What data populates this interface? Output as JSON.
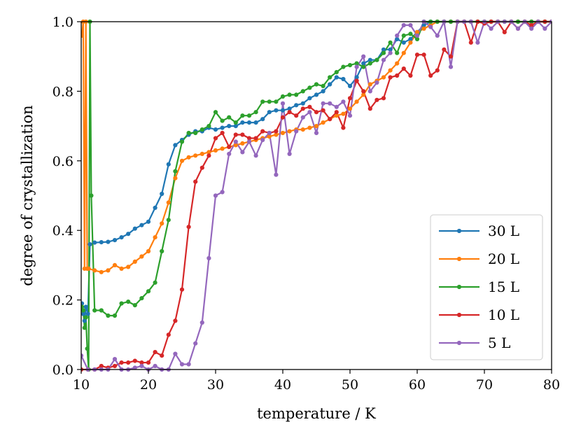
{
  "chart_data": {
    "type": "line",
    "title": "",
    "xlabel": "temperature / K",
    "ylabel": "degree of crystallization",
    "xlim": [
      10,
      80
    ],
    "ylim": [
      0.0,
      1.0
    ],
    "xticks": [
      "10",
      "20",
      "30",
      "40",
      "50",
      "60",
      "70",
      "80"
    ],
    "yticks": [
      "0.0",
      "0.2",
      "0.4",
      "0.6",
      "0.8",
      "1.0"
    ],
    "grid": false,
    "legend_position": "bottom-right",
    "series": [
      {
        "name": "30 L",
        "color": "#1f77b4",
        "x": [
          10.1,
          10.3,
          10.5,
          10.7,
          11.0,
          11.3,
          12,
          13,
          14,
          15,
          16,
          17,
          18,
          19,
          20,
          21,
          22,
          23,
          24,
          25,
          26,
          27,
          28,
          29,
          30,
          31,
          32,
          33,
          34,
          35,
          36,
          37,
          38,
          39,
          40,
          41,
          42,
          43,
          44,
          45,
          46,
          47,
          48,
          49,
          50,
          51,
          52,
          53,
          54,
          55,
          56,
          57,
          58,
          59,
          60,
          61,
          62,
          63,
          64,
          65,
          66,
          67,
          68,
          69,
          70,
          71,
          72,
          73,
          74,
          75,
          76,
          77,
          78,
          79,
          80
        ],
        "y": [
          0.19,
          0.16,
          0.14,
          0.18,
          0.16,
          0.36,
          0.365,
          0.366,
          0.367,
          0.372,
          0.38,
          0.39,
          0.405,
          0.415,
          0.425,
          0.465,
          0.505,
          0.59,
          0.645,
          0.66,
          0.675,
          0.685,
          0.685,
          0.695,
          0.69,
          0.695,
          0.7,
          0.7,
          0.71,
          0.71,
          0.71,
          0.72,
          0.74,
          0.745,
          0.745,
          0.75,
          0.76,
          0.765,
          0.78,
          0.79,
          0.8,
          0.82,
          0.84,
          0.835,
          0.815,
          0.84,
          0.88,
          0.89,
          0.89,
          0.92,
          0.92,
          0.95,
          0.94,
          0.95,
          0.97,
          0.99,
          1.0,
          1.0,
          1.0,
          1.0,
          1.0,
          1.0,
          1.0,
          1.0,
          1.0,
          1.0,
          1.0,
          1.0,
          1.0,
          1.0,
          1.0,
          1.0,
          1.0,
          1.0,
          1.0
        ]
      },
      {
        "name": "20 L",
        "color": "#ff7f0e",
        "x": [
          10.1,
          10.3,
          10.5,
          10.7,
          10.9,
          11.1,
          12,
          13,
          14,
          15,
          16,
          17,
          18,
          19,
          20,
          21,
          22,
          23,
          24,
          25,
          26,
          27,
          28,
          29,
          30,
          31,
          32,
          33,
          34,
          35,
          36,
          37,
          38,
          39,
          40,
          41,
          42,
          43,
          44,
          45,
          46,
          47,
          48,
          49,
          50,
          51,
          52,
          53,
          54,
          55,
          56,
          57,
          58,
          59,
          60,
          61,
          62,
          63,
          64,
          65,
          66,
          67,
          68,
          69,
          70,
          71,
          72,
          73,
          74,
          75,
          76,
          77,
          78,
          79,
          80
        ],
        "y": [
          0.96,
          1.0,
          0.29,
          1.0,
          0.29,
          0.29,
          0.285,
          0.28,
          0.285,
          0.3,
          0.29,
          0.295,
          0.31,
          0.325,
          0.34,
          0.38,
          0.42,
          0.48,
          0.55,
          0.6,
          0.61,
          0.615,
          0.62,
          0.625,
          0.63,
          0.635,
          0.64,
          0.645,
          0.65,
          0.655,
          0.66,
          0.665,
          0.67,
          0.675,
          0.68,
          0.685,
          0.69,
          0.69,
          0.695,
          0.7,
          0.71,
          0.72,
          0.73,
          0.735,
          0.75,
          0.77,
          0.79,
          0.82,
          0.83,
          0.84,
          0.86,
          0.88,
          0.91,
          0.94,
          0.97,
          0.98,
          0.99,
          1.0,
          1.0,
          1.0,
          1.0,
          1.0,
          1.0,
          1.0,
          1.0,
          1.0,
          1.0,
          1.0,
          1.0,
          1.0,
          1.0,
          1.0,
          1.0,
          1.0,
          1.0
        ]
      },
      {
        "name": "15 L",
        "color": "#2ca02c",
        "x": [
          10.1,
          10.3,
          10.5,
          10.7,
          10.9,
          11.1,
          11.3,
          11.5,
          12,
          13,
          14,
          15,
          16,
          17,
          18,
          19,
          20,
          21,
          22,
          23,
          24,
          25,
          26,
          27,
          28,
          29,
          30,
          31,
          32,
          33,
          34,
          35,
          36,
          37,
          38,
          39,
          40,
          41,
          42,
          43,
          44,
          45,
          46,
          47,
          48,
          49,
          50,
          51,
          52,
          53,
          54,
          55,
          56,
          57,
          58,
          59,
          60,
          61,
          62,
          63,
          64,
          65,
          66,
          67,
          68,
          69,
          70,
          71,
          72,
          73,
          74,
          75,
          76,
          77,
          78,
          79,
          80
        ],
        "y": [
          0.18,
          0.17,
          0.12,
          0.15,
          0.06,
          0.0,
          1.0,
          0.5,
          0.17,
          0.17,
          0.155,
          0.155,
          0.19,
          0.195,
          0.185,
          0.205,
          0.225,
          0.25,
          0.34,
          0.43,
          0.57,
          0.655,
          0.68,
          0.68,
          0.69,
          0.7,
          0.74,
          0.715,
          0.725,
          0.71,
          0.73,
          0.73,
          0.74,
          0.77,
          0.77,
          0.77,
          0.785,
          0.79,
          0.79,
          0.8,
          0.81,
          0.82,
          0.815,
          0.84,
          0.855,
          0.87,
          0.875,
          0.88,
          0.87,
          0.88,
          0.89,
          0.91,
          0.94,
          0.91,
          0.96,
          0.965,
          0.95,
          1.0,
          1.0,
          1.0,
          1.0,
          1.0,
          1.0,
          1.0,
          1.0,
          1.0,
          1.0,
          1.0,
          1.0,
          1.0,
          1.0,
          1.0,
          1.0,
          1.0,
          1.0,
          1.0,
          1.0
        ]
      },
      {
        "name": "10 L",
        "color": "#d62728",
        "x": [
          10,
          11,
          12,
          13,
          14,
          15,
          16,
          17,
          18,
          19,
          20,
          21,
          22,
          23,
          24,
          25,
          26,
          27,
          28,
          29,
          30,
          31,
          32,
          33,
          34,
          35,
          36,
          37,
          38,
          39,
          40,
          41,
          42,
          43,
          44,
          45,
          46,
          47,
          48,
          49,
          50,
          51,
          52,
          53,
          54,
          55,
          56,
          57,
          58,
          59,
          60,
          61,
          62,
          63,
          64,
          65,
          66,
          67,
          68,
          69,
          70,
          71,
          72,
          73,
          74,
          75,
          76,
          77,
          78,
          79,
          80
        ],
        "y": [
          0.0,
          0.0,
          0.0,
          0.01,
          0.005,
          0.01,
          0.02,
          0.02,
          0.025,
          0.02,
          0.02,
          0.05,
          0.04,
          0.1,
          0.14,
          0.23,
          0.41,
          0.54,
          0.58,
          0.615,
          0.665,
          0.68,
          0.64,
          0.675,
          0.675,
          0.665,
          0.665,
          0.685,
          0.68,
          0.685,
          0.725,
          0.74,
          0.73,
          0.75,
          0.755,
          0.74,
          0.745,
          0.72,
          0.74,
          0.695,
          0.78,
          0.83,
          0.8,
          0.75,
          0.775,
          0.78,
          0.84,
          0.845,
          0.865,
          0.845,
          0.905,
          0.905,
          0.845,
          0.86,
          0.92,
          0.9,
          1.0,
          1.0,
          0.94,
          1.0,
          0.995,
          1.0,
          1.0,
          0.97,
          1.0,
          0.98,
          1.0,
          0.99,
          1.0,
          1.0,
          1.0
        ]
      },
      {
        "name": "5 L",
        "color": "#9467bd",
        "x": [
          10,
          11,
          12,
          13,
          14,
          15,
          16,
          17,
          18,
          19,
          20,
          21,
          22,
          23,
          24,
          25,
          26,
          27,
          28,
          29,
          30,
          31,
          32,
          33,
          34,
          35,
          36,
          37,
          38,
          39,
          40,
          41,
          42,
          43,
          44,
          45,
          46,
          47,
          48,
          49,
          50,
          51,
          52,
          53,
          54,
          55,
          56,
          57,
          58,
          59,
          60,
          61,
          62,
          63,
          64,
          65,
          66,
          67,
          68,
          69,
          70,
          71,
          72,
          73,
          74,
          75,
          76,
          77,
          78,
          79,
          80
        ],
        "y": [
          0.04,
          0.0,
          0.0,
          0.0,
          0.0,
          0.03,
          0.0,
          0.0,
          0.005,
          0.01,
          0.0,
          0.01,
          0.0,
          0.0,
          0.045,
          0.015,
          0.015,
          0.075,
          0.135,
          0.32,
          0.5,
          0.51,
          0.62,
          0.655,
          0.625,
          0.655,
          0.615,
          0.66,
          0.68,
          0.56,
          0.765,
          0.62,
          0.685,
          0.725,
          0.74,
          0.68,
          0.765,
          0.765,
          0.755,
          0.77,
          0.73,
          0.87,
          0.9,
          0.8,
          0.825,
          0.89,
          0.91,
          0.96,
          0.99,
          0.99,
          0.96,
          1.0,
          0.985,
          0.96,
          1.0,
          0.87,
          1.0,
          1.0,
          1.0,
          0.94,
          1.0,
          0.98,
          1.0,
          1.0,
          1.0,
          0.98,
          1.0,
          0.98,
          1.0,
          0.98,
          1.0
        ]
      }
    ]
  }
}
